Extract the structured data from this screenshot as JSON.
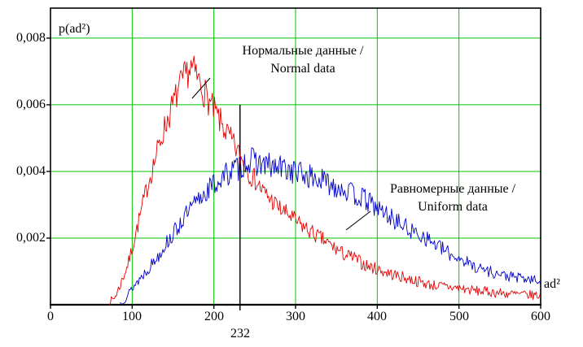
{
  "labels": {
    "y_title": "p(ad²)",
    "x_title": "ad²"
  },
  "chart_data": {
    "type": "line",
    "title": "",
    "xlabel": "ad²",
    "ylabel": "p(ad²)",
    "xlim": [
      0,
      600
    ],
    "ylim": [
      0,
      0.0089
    ],
    "grid": true,
    "legend_position": "none",
    "x_ticks": [
      0,
      100,
      200,
      300,
      400,
      500,
      600
    ],
    "x_tick_labels": [
      "0",
      "100",
      "200",
      "300",
      "400",
      "500",
      "600"
    ],
    "y_ticks": [
      0.002,
      0.004,
      0.006,
      0.008
    ],
    "y_tick_labels": [
      "0,002",
      "0,004",
      "0,006",
      "0,008"
    ],
    "colors": {
      "grid": "#00c400",
      "axis": "#000000",
      "background": "#ffffff",
      "normal_series": "#e60000",
      "uniform_series": "#0000cc"
    },
    "marker_line": {
      "x": 232,
      "label": "232",
      "y_top": 0.006
    },
    "series": [
      {
        "name": "Нормальные данные / Normal data",
        "color": "#e60000",
        "noise": 0.00052,
        "seed": 7,
        "anchors": [
          [
            72,
            5e-05
          ],
          [
            78,
            0.0002
          ],
          [
            84,
            0.0005
          ],
          [
            90,
            0.0009
          ],
          [
            96,
            0.0013
          ],
          [
            102,
            0.0019
          ],
          [
            108,
            0.0025
          ],
          [
            114,
            0.0031
          ],
          [
            120,
            0.0037
          ],
          [
            126,
            0.0042
          ],
          [
            132,
            0.0047
          ],
          [
            138,
            0.0052
          ],
          [
            144,
            0.0056
          ],
          [
            150,
            0.006
          ],
          [
            156,
            0.0064
          ],
          [
            162,
            0.0067
          ],
          [
            168,
            0.007
          ],
          [
            172,
            0.0071
          ],
          [
            178,
            0.0069
          ],
          [
            184,
            0.0066
          ],
          [
            190,
            0.0063
          ],
          [
            196,
            0.006
          ],
          [
            203,
            0.0057
          ],
          [
            210,
            0.0054
          ],
          [
            217,
            0.0051
          ],
          [
            224,
            0.0048
          ],
          [
            231,
            0.0045
          ],
          [
            238,
            0.0042
          ],
          [
            245,
            0.0039
          ],
          [
            252,
            0.0037
          ],
          [
            260,
            0.0034
          ],
          [
            268,
            0.0032
          ],
          [
            276,
            0.003
          ],
          [
            284,
            0.0028
          ],
          [
            292,
            0.0027
          ],
          [
            300,
            0.0025
          ],
          [
            312,
            0.0023
          ],
          [
            324,
            0.0021
          ],
          [
            336,
            0.0019
          ],
          [
            348,
            0.0017
          ],
          [
            360,
            0.0015
          ],
          [
            372,
            0.0014
          ],
          [
            384,
            0.0012
          ],
          [
            396,
            0.0011
          ],
          [
            408,
            0.001
          ],
          [
            420,
            0.0009
          ],
          [
            435,
            0.0008
          ],
          [
            450,
            0.0007
          ],
          [
            465,
            0.0006
          ],
          [
            480,
            0.00055
          ],
          [
            500,
            0.0005
          ],
          [
            520,
            0.00042
          ],
          [
            540,
            0.00038
          ],
          [
            560,
            0.00033
          ],
          [
            580,
            0.0003
          ],
          [
            600,
            0.00028
          ]
        ]
      },
      {
        "name": "Равномерные данные / Uniform data",
        "color": "#0000cc",
        "noise": 0.00042,
        "seed": 13,
        "anchors": [
          [
            85,
            5e-05
          ],
          [
            92,
            0.0002
          ],
          [
            100,
            0.0005
          ],
          [
            110,
            0.0008
          ],
          [
            120,
            0.0011
          ],
          [
            130,
            0.0014
          ],
          [
            140,
            0.0018
          ],
          [
            150,
            0.0021
          ],
          [
            160,
            0.0025
          ],
          [
            170,
            0.0028
          ],
          [
            180,
            0.0031
          ],
          [
            190,
            0.0034
          ],
          [
            200,
            0.0036
          ],
          [
            210,
            0.0038
          ],
          [
            220,
            0.004
          ],
          [
            230,
            0.0041
          ],
          [
            240,
            0.0043
          ],
          [
            250,
            0.0043
          ],
          [
            262,
            0.0042
          ],
          [
            274,
            0.0041
          ],
          [
            286,
            0.0041
          ],
          [
            298,
            0.004
          ],
          [
            310,
            0.0039
          ],
          [
            322,
            0.0038
          ],
          [
            334,
            0.0037
          ],
          [
            346,
            0.0036
          ],
          [
            358,
            0.0035
          ],
          [
            370,
            0.0033
          ],
          [
            382,
            0.0032
          ],
          [
            394,
            0.003
          ],
          [
            406,
            0.0028
          ],
          [
            418,
            0.0026
          ],
          [
            430,
            0.0024
          ],
          [
            442,
            0.0022
          ],
          [
            454,
            0.0021
          ],
          [
            466,
            0.0019
          ],
          [
            478,
            0.0017
          ],
          [
            490,
            0.0015
          ],
          [
            502,
            0.0014
          ],
          [
            514,
            0.0012
          ],
          [
            526,
            0.0011
          ],
          [
            538,
            0.001
          ],
          [
            550,
            0.0009
          ],
          [
            562,
            0.00085
          ],
          [
            574,
            0.0008
          ],
          [
            586,
            0.00075
          ],
          [
            600,
            0.0007
          ]
        ]
      }
    ],
    "annotations": [
      {
        "line1": "Нормальные данные /",
        "line2": "Normal data",
        "leader": [
          258,
          96,
          236,
          121
        ]
      },
      {
        "line1": "Равномерные данные /",
        "line2": "Uniform data",
        "leader": [
          455,
          260,
          425,
          283
        ]
      }
    ]
  }
}
